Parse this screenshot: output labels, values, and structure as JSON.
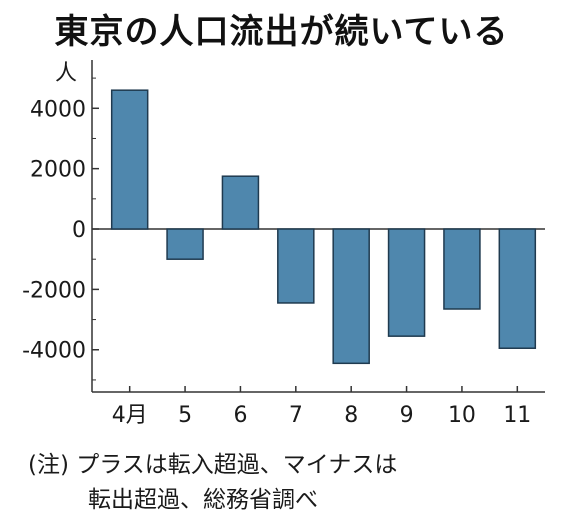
{
  "title": "東京の人口流出が続いている",
  "note": {
    "line1": "(注) プラスは転入超過、マイナスは",
    "line2": "転出超過、総務省調べ"
  },
  "colors": {
    "bar": "#4f87ad",
    "bar_stroke": "#1f3a4f",
    "axis": "#333333"
  },
  "chart_data": {
    "type": "bar",
    "title": "東京の人口流出が続いている",
    "ylabel": "人",
    "xlabel": "",
    "categories": [
      "4月",
      "5",
      "6",
      "7",
      "8",
      "9",
      "10",
      "11"
    ],
    "values": [
      4600,
      -1000,
      1750,
      -2450,
      -4450,
      -3550,
      -2650,
      -3950
    ],
    "ylim": [
      -5400,
      5600
    ],
    "yticks": [
      4000,
      2000,
      0,
      -2000,
      -4000
    ],
    "ytick_labels": [
      "4000",
      "2000",
      "0",
      "-2000",
      "-4000"
    ],
    "grid": false,
    "legend": "none"
  }
}
